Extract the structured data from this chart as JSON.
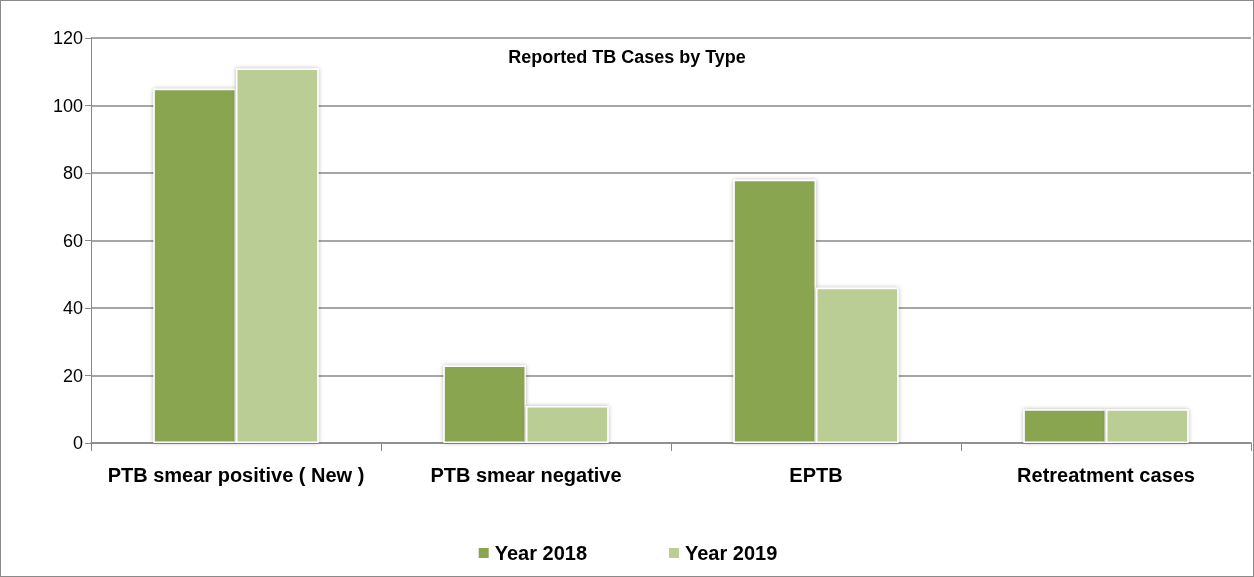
{
  "chart_data": {
    "type": "bar",
    "title": "Reported TB Cases by Type",
    "categories": [
      "PTB smear positive ( New )",
      "PTB smear negative",
      "EPTB",
      "Retreatment cases"
    ],
    "series": [
      {
        "name": "Year 2018",
        "color": "#8aa54f",
        "values": [
          105,
          23,
          78,
          10
        ]
      },
      {
        "name": "Year 2019",
        "color": "#b9cd95",
        "values": [
          111,
          11,
          46,
          10
        ]
      }
    ],
    "ylim": [
      0,
      120
    ],
    "yticks": [
      0,
      20,
      40,
      60,
      80,
      100,
      120
    ],
    "grid": "y",
    "legend": "bottom"
  }
}
